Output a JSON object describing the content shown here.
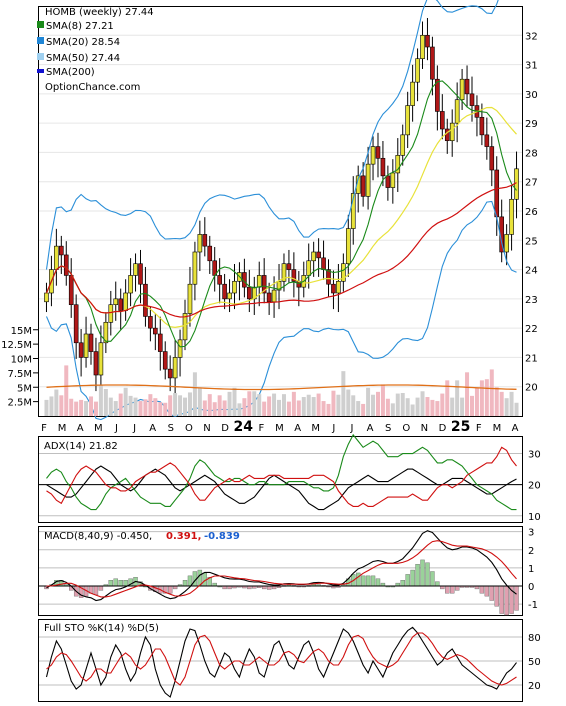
{
  "header": {
    "title": "HOMB (weekly) 27.44",
    "legend": [
      {
        "label": "SMA(8) 27.21",
        "color": "#1a8a1a"
      },
      {
        "label": "SMA(20) 28.54",
        "color": "#1f86d6"
      },
      {
        "label": "SMA(50) 27.44",
        "color": "#9fd0f0"
      },
      {
        "label": "SMA(200)",
        "color": "#1010d0"
      }
    ],
    "source": "OptionChance.com"
  },
  "colors": {
    "up": "#e8e23a",
    "down": "#b01818",
    "sma8": "#1a8a1a",
    "sma20": "#2b8fd8",
    "bb_yellow": "#e8e23a",
    "sma50": "#d01010",
    "volume": "#f0b8c0",
    "volume_up": "#cfcfcf",
    "vol_avg": "#e07018",
    "adx": "#000000",
    "plus_di": "#1a8a1a",
    "minus_di": "#d01010",
    "macd": "#000000",
    "signal": "#d01010",
    "hist_pos": "#9ad29a",
    "hist_neg": "#e0a0b0",
    "stoch_k": "#000000",
    "stoch_d": "#d01010"
  },
  "x_labels": [
    "F",
    "M",
    "A",
    "M",
    "J",
    "J",
    "A",
    "S",
    "O",
    "N",
    "D",
    "24",
    "F",
    "M",
    "A",
    "M",
    "J",
    "J",
    "A",
    "S",
    "O",
    "N",
    "D",
    "25",
    "F",
    "M",
    "A"
  ],
  "x_label_bold": [
    "24",
    "25"
  ],
  "chart_data": [
    {
      "type": "candlestick",
      "title": "HOMB (weekly) 27.44",
      "ylim": [
        19,
        33
      ],
      "y_ticks": [
        "32",
        "31",
        "30",
        "29",
        "28",
        "27",
        "26",
        "25",
        "24",
        "23",
        "22",
        "21",
        "20"
      ],
      "series": [
        {
          "name": "SMA(8)",
          "value": 27.21
        },
        {
          "name": "SMA(20)",
          "value": 28.54
        },
        {
          "name": "SMA(50)",
          "value": 27.44
        },
        {
          "name": "SMA(200)",
          "value": null
        }
      ],
      "closes": [
        23.2,
        24.0,
        24.8,
        24.5,
        23.8,
        22.8,
        21.5,
        21.0,
        21.8,
        21.2,
        20.4,
        21.5,
        22.2,
        22.8,
        23.0,
        22.6,
        23.2,
        23.8,
        24.2,
        23.5,
        22.4,
        22.0,
        21.8,
        21.2,
        20.6,
        20.3,
        21.0,
        21.6,
        22.5,
        23.5,
        24.6,
        25.2,
        24.8,
        24.3,
        23.8,
        23.5,
        23.0,
        23.2,
        23.6,
        23.9,
        23.4,
        23.0,
        23.4,
        23.8,
        23.2,
        22.9,
        23.3,
        23.6,
        24.2,
        24.0,
        23.6,
        23.4,
        23.8,
        24.3,
        24.6,
        24.4,
        24.0,
        23.5,
        23.2,
        23.6,
        24.2,
        25.4,
        26.6,
        27.2,
        26.5,
        27.6,
        28.2,
        27.8,
        27.2,
        26.8,
        27.3,
        27.9,
        28.6,
        29.6,
        30.4,
        31.2,
        32.0,
        31.6,
        30.5,
        29.4,
        28.8,
        28.4,
        29.0,
        29.8,
        30.5,
        30.0,
        29.6,
        29.2,
        28.6,
        28.2,
        27.4,
        25.8,
        24.6,
        25.2,
        26.4,
        27.44
      ]
    },
    {
      "type": "bar",
      "title": "Volume",
      "y_ticks": [
        "15M",
        "12.5M",
        "10M",
        "7.5M",
        "5M",
        "2.5M"
      ],
      "ylim": [
        0,
        16
      ],
      "values": [
        2.8,
        3.4,
        4.6,
        3.6,
        8.8,
        3.0,
        2.5,
        2.8,
        2.6,
        3.4,
        2.5,
        5.4,
        4.7,
        3.2,
        2.6,
        3.9,
        4.9,
        3.5,
        3.2,
        2.6,
        2.9,
        3.8,
        3.1,
        2.4,
        2.3,
        3.6,
        4.0,
        3.6,
        3.2,
        4.1,
        7.6,
        4.9,
        2.7,
        3.8,
        2.4,
        3.6,
        2.7,
        4.2,
        4.9,
        2.2,
        3.1,
        4.3,
        4.3,
        3.8,
        2.5,
        3.4,
        3.9,
        2.8,
        3.8,
        2.5,
        4.2,
        2.7,
        3.3,
        3.7,
        3.3,
        3.9,
        2.6,
        2.1,
        4.4,
        3.7,
        7.8,
        4.6,
        3.6,
        2.6,
        2.1,
        4.9,
        3.7,
        4.2,
        5.5,
        3.0,
        2.2,
        3.9,
        4.0,
        3.1,
        2.0,
        3.2,
        4.3,
        3.3,
        2.8,
        2.6,
        3.9,
        6.2,
        3.2,
        6.2,
        3.2,
        7.6,
        3.5,
        4.9,
        6.2,
        6.4,
        8.1,
        5.0,
        4.2,
        3.1,
        4.2,
        2.3
      ],
      "avg_level": 5
    },
    {
      "type": "line",
      "title": "ADX(14) 21.82",
      "ylim": [
        8,
        35
      ],
      "y_ticks": [
        "30",
        "20",
        "10"
      ],
      "series": [
        {
          "name": "ADX(14)",
          "values": [
            20,
            19,
            18,
            17,
            16,
            16,
            17,
            19,
            21,
            23,
            25,
            26,
            25,
            24,
            22,
            20,
            19,
            18,
            19,
            21,
            23,
            24,
            25,
            24,
            23,
            21,
            19,
            18,
            19,
            20,
            21,
            22,
            23,
            22,
            21,
            19,
            17,
            16,
            15,
            14,
            14,
            15,
            16,
            18,
            20,
            22,
            23,
            22,
            21,
            20,
            19,
            18,
            16,
            14,
            13,
            12,
            12,
            13,
            14,
            15,
            17,
            19,
            20,
            21,
            22,
            23,
            22,
            21,
            21,
            21,
            22,
            23,
            24,
            25,
            25,
            24,
            23,
            22,
            21,
            20,
            20,
            21,
            22,
            22,
            22,
            21,
            20,
            19,
            18,
            17,
            17,
            18,
            19,
            20,
            21,
            21.82
          ]
        },
        {
          "name": "+DI",
          "values": [
            22,
            24,
            25,
            24,
            21,
            19,
            16,
            14,
            13,
            12,
            12,
            14,
            17,
            19,
            20,
            21,
            22,
            20,
            18,
            16,
            15,
            14,
            14,
            14,
            13,
            13,
            15,
            17,
            19,
            22,
            26,
            28,
            27,
            25,
            23,
            22,
            21,
            21,
            22,
            22,
            21,
            20,
            20,
            21,
            21,
            20,
            20,
            20,
            20,
            21,
            21,
            21,
            21,
            20,
            19,
            19,
            18,
            18,
            19,
            23,
            29,
            33,
            36,
            34,
            32,
            33,
            34,
            33,
            31,
            29,
            29,
            29,
            30,
            30,
            30,
            31,
            32,
            31,
            29,
            27,
            27,
            28,
            28,
            27,
            26,
            24,
            22,
            20,
            19,
            18,
            17,
            15,
            14,
            13,
            12,
            12
          ]
        },
        {
          "name": "-DI",
          "values": [
            18,
            17,
            15,
            14,
            17,
            20,
            23,
            25,
            26,
            25,
            24,
            22,
            20,
            19,
            19,
            18,
            18,
            19,
            21,
            22,
            23,
            24,
            24,
            25,
            26,
            27,
            26,
            24,
            22,
            20,
            17,
            15,
            15,
            17,
            19,
            20,
            21,
            22,
            21,
            21,
            22,
            23,
            22,
            22,
            22,
            23,
            23,
            23,
            22,
            22,
            22,
            22,
            22,
            22,
            23,
            23,
            23,
            22,
            21,
            18,
            16,
            14,
            13,
            13,
            14,
            13,
            13,
            14,
            15,
            16,
            16,
            16,
            16,
            16,
            17,
            16,
            15,
            15,
            17,
            19,
            20,
            20,
            19,
            20,
            21,
            23,
            24,
            25,
            26,
            27,
            27,
            29,
            32,
            31,
            28,
            26
          ]
        }
      ]
    },
    {
      "type": "line",
      "title": "MACD(8,40,9) -0.450,",
      "value_labels": [
        "0.391,",
        "-0.839"
      ],
      "ylim": [
        -1.6,
        3.2
      ],
      "y_ticks": [
        "3",
        "2",
        "1",
        "0",
        "-1"
      ],
      "series": [
        {
          "name": "MACD",
          "values": [
            -0.1,
            0.05,
            0.25,
            0.3,
            0.2,
            0.0,
            -0.3,
            -0.5,
            -0.6,
            -0.65,
            -0.8,
            -0.75,
            -0.55,
            -0.35,
            -0.2,
            -0.15,
            -0.05,
            0.1,
            0.25,
            0.2,
            0.05,
            -0.15,
            -0.3,
            -0.45,
            -0.6,
            -0.7,
            -0.65,
            -0.5,
            -0.3,
            -0.05,
            0.3,
            0.6,
            0.75,
            0.75,
            0.65,
            0.55,
            0.45,
            0.4,
            0.38,
            0.38,
            0.33,
            0.25,
            0.22,
            0.22,
            0.15,
            0.08,
            0.05,
            0.06,
            0.12,
            0.14,
            0.12,
            0.08,
            0.08,
            0.12,
            0.18,
            0.2,
            0.18,
            0.12,
            0.05,
            0.05,
            0.15,
            0.4,
            0.7,
            0.95,
            1.05,
            1.2,
            1.35,
            1.4,
            1.35,
            1.25,
            1.25,
            1.35,
            1.5,
            1.8,
            2.1,
            2.5,
            2.9,
            3.05,
            2.95,
            2.65,
            2.35,
            2.1,
            2.0,
            2.05,
            2.15,
            2.15,
            2.1,
            2.0,
            1.8,
            1.6,
            1.3,
            0.9,
            0.4,
            0.05,
            -0.25,
            -0.45
          ]
        },
        {
          "name": "Signal",
          "values": [
            0.0,
            0.0,
            0.05,
            0.1,
            0.15,
            0.15,
            0.05,
            -0.1,
            -0.25,
            -0.4,
            -0.5,
            -0.6,
            -0.6,
            -0.55,
            -0.45,
            -0.35,
            -0.25,
            -0.15,
            -0.05,
            0.05,
            0.05,
            0.0,
            -0.1,
            -0.2,
            -0.35,
            -0.45,
            -0.55,
            -0.55,
            -0.5,
            -0.4,
            -0.2,
            0.05,
            0.3,
            0.45,
            0.55,
            0.55,
            0.55,
            0.5,
            0.45,
            0.42,
            0.4,
            0.35,
            0.3,
            0.28,
            0.25,
            0.2,
            0.15,
            0.12,
            0.1,
            0.1,
            0.1,
            0.1,
            0.1,
            0.1,
            0.12,
            0.15,
            0.16,
            0.15,
            0.12,
            0.1,
            0.1,
            0.15,
            0.3,
            0.5,
            0.7,
            0.85,
            1.0,
            1.15,
            1.25,
            1.25,
            1.25,
            1.25,
            1.3,
            1.4,
            1.55,
            1.75,
            2.0,
            2.25,
            2.45,
            2.5,
            2.45,
            2.35,
            2.25,
            2.2,
            2.2,
            2.2,
            2.15,
            2.1,
            2.05,
            1.95,
            1.8,
            1.6,
            1.35,
            1.05,
            0.7,
            0.39
          ]
        }
      ]
    },
    {
      "type": "line",
      "title": "Full STO %K(14) %D(5)",
      "ylim": [
        0,
        100
      ],
      "y_ticks": [
        "80",
        "50",
        "20"
      ],
      "series": [
        {
          "name": "%K",
          "values": [
            30,
            55,
            75,
            65,
            45,
            25,
            15,
            20,
            40,
            60,
            40,
            20,
            30,
            55,
            70,
            60,
            40,
            25,
            35,
            60,
            80,
            70,
            40,
            20,
            10,
            5,
            25,
            50,
            75,
            90,
            88,
            70,
            50,
            35,
            30,
            45,
            60,
            55,
            40,
            30,
            50,
            65,
            55,
            35,
            30,
            50,
            70,
            75,
            60,
            45,
            40,
            55,
            70,
            75,
            60,
            40,
            30,
            45,
            60,
            75,
            90,
            85,
            75,
            60,
            45,
            35,
            50,
            40,
            30,
            45,
            60,
            70,
            80,
            88,
            92,
            85,
            75,
            65,
            55,
            45,
            50,
            60,
            65,
            55,
            45,
            40,
            35,
            30,
            25,
            20,
            18,
            15,
            25,
            35,
            40,
            48
          ]
        },
        {
          "name": "%D",
          "values": [
            40,
            45,
            55,
            60,
            58,
            50,
            40,
            30,
            25,
            30,
            40,
            40,
            35,
            35,
            45,
            55,
            60,
            55,
            45,
            40,
            45,
            55,
            65,
            65,
            55,
            40,
            25,
            20,
            30,
            50,
            70,
            80,
            82,
            75,
            60,
            45,
            40,
            45,
            50,
            50,
            45,
            45,
            50,
            55,
            50,
            45,
            45,
            50,
            60,
            62,
            58,
            50,
            48,
            55,
            62,
            65,
            60,
            50,
            45,
            45,
            55,
            70,
            80,
            82,
            78,
            65,
            55,
            48,
            45,
            42,
            45,
            50,
            60,
            70,
            80,
            85,
            85,
            80,
            72,
            62,
            55,
            52,
            55,
            58,
            56,
            52,
            46,
            40,
            35,
            30,
            25,
            22,
            20,
            22,
            26,
            30
          ]
        }
      ]
    }
  ]
}
